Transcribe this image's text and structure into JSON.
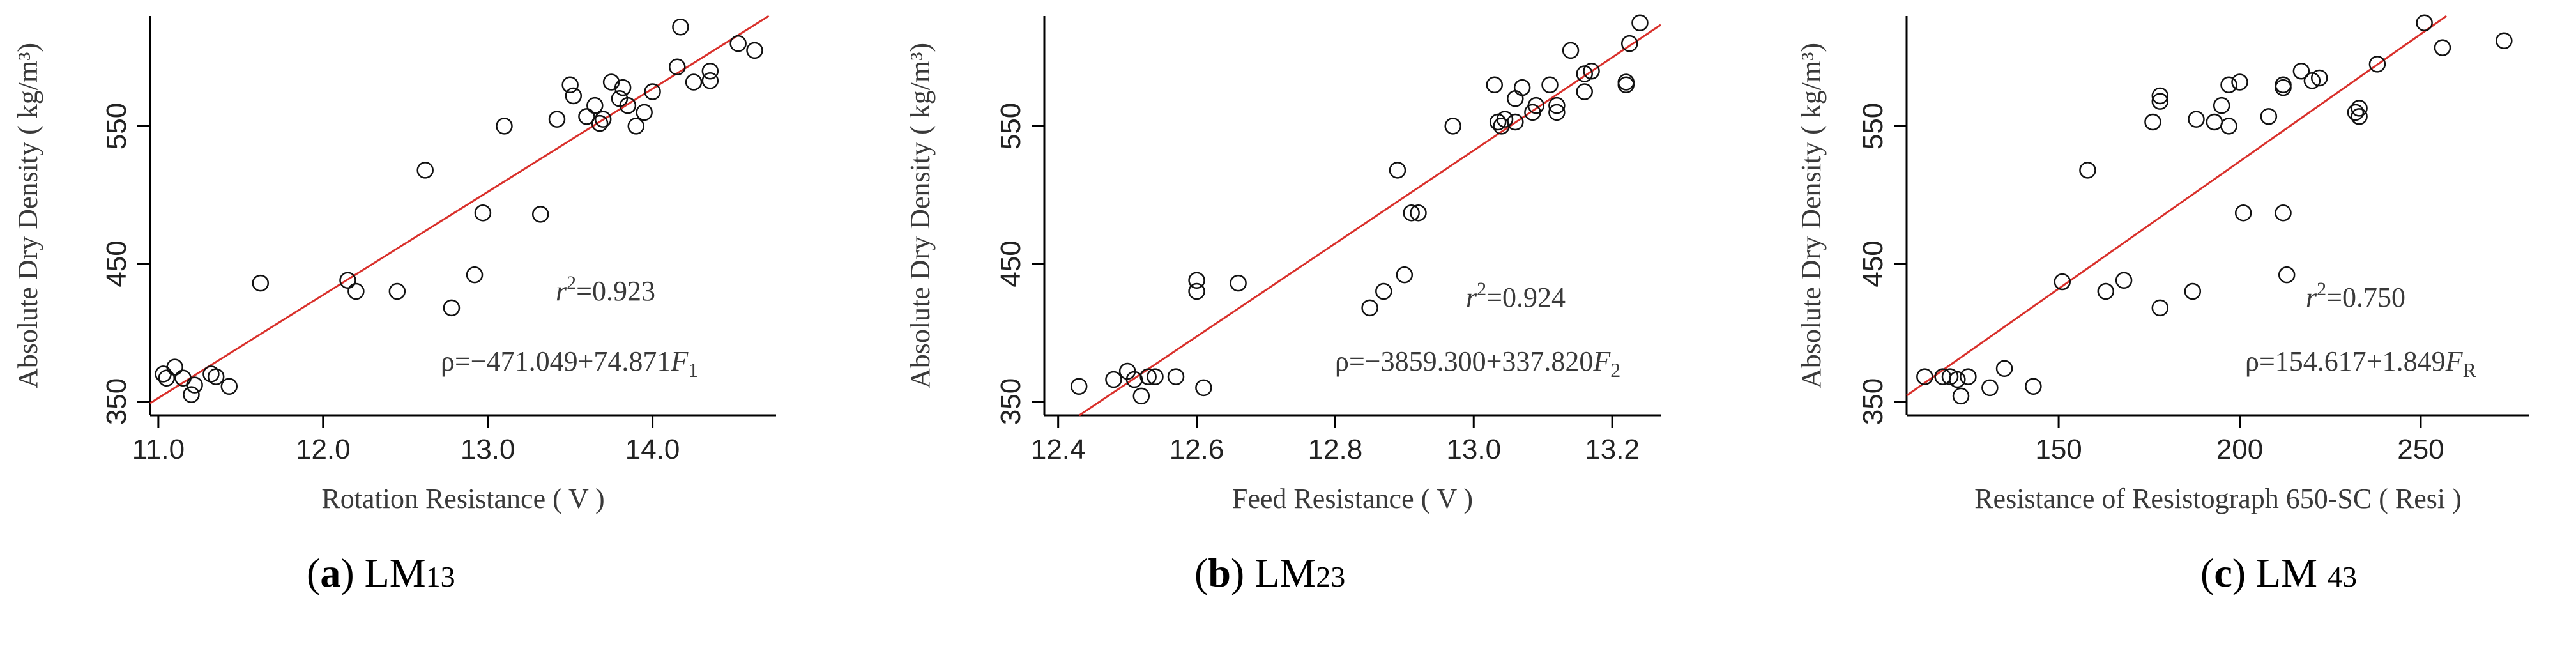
{
  "chart_data": [
    {
      "type": "scatter",
      "id": "a",
      "xlabel": "Rotation Resistance ( V )",
      "ylabel": "Absolute Dry Density ( kg/m³)",
      "xlim": [
        10.95,
        14.75
      ],
      "ylim": [
        340,
        630
      ],
      "xticks": [
        "11.0",
        "12.0",
        "13.0",
        "14.0"
      ],
      "xtick_values": [
        11,
        12,
        13,
        14
      ],
      "yticks": [
        "350",
        "450",
        "550"
      ],
      "ytick_values": [
        350,
        450,
        550
      ],
      "fit": {
        "intercept": -471.049,
        "slope": 74.871
      },
      "annotation_r2_pre": "r",
      "annotation_r2_sup": "2",
      "annotation_r2_post": "=0.923",
      "annotation_eq_pre": "ρ=−471.049+74.871",
      "annotation_eq_var": "F",
      "annotation_eq_sub": "1",
      "points": [
        [
          11.03,
          370
        ],
        [
          11.05,
          367
        ],
        [
          11.1,
          375
        ],
        [
          11.15,
          367
        ],
        [
          11.2,
          355
        ],
        [
          11.22,
          362
        ],
        [
          11.32,
          370
        ],
        [
          11.35,
          368
        ],
        [
          11.43,
          361
        ],
        [
          11.62,
          436
        ],
        [
          12.15,
          438
        ],
        [
          12.2,
          430
        ],
        [
          12.45,
          430
        ],
        [
          12.62,
          518
        ],
        [
          12.78,
          418
        ],
        [
          12.92,
          442
        ],
        [
          12.97,
          487
        ],
        [
          13.1,
          550
        ],
        [
          13.32,
          486
        ],
        [
          13.42,
          555
        ],
        [
          13.5,
          580
        ],
        [
          13.52,
          572
        ],
        [
          13.6,
          557
        ],
        [
          13.65,
          565
        ],
        [
          13.68,
          552
        ],
        [
          13.7,
          555
        ],
        [
          13.75,
          582
        ],
        [
          13.8,
          570
        ],
        [
          13.82,
          578
        ],
        [
          13.85,
          565
        ],
        [
          13.9,
          550
        ],
        [
          13.95,
          560
        ],
        [
          14.0,
          575
        ],
        [
          14.15,
          593
        ],
        [
          14.17,
          622
        ],
        [
          14.25,
          582
        ],
        [
          14.35,
          590
        ],
        [
          14.35,
          583
        ],
        [
          14.52,
          610
        ],
        [
          14.62,
          605
        ]
      ]
    },
    {
      "type": "scatter",
      "id": "b",
      "xlabel": "Feed Resistance ( V )",
      "ylabel": "Absolute Dry Density ( kg/m³)",
      "xlim": [
        12.38,
        13.27
      ],
      "ylim": [
        340,
        630
      ],
      "xticks": [
        "12.4",
        "12.6",
        "12.8",
        "13.0",
        "13.2"
      ],
      "xtick_values": [
        12.4,
        12.6,
        12.8,
        13.0,
        13.2
      ],
      "yticks": [
        "350",
        "450",
        "550"
      ],
      "ytick_values": [
        350,
        450,
        550
      ],
      "fit": {
        "intercept": -3859.3,
        "slope": 337.82
      },
      "annotation_r2_pre": "r",
      "annotation_r2_sup": "2",
      "annotation_r2_post": "=0.924",
      "annotation_eq_pre": "ρ=−3859.300+337.820",
      "annotation_eq_var": "F",
      "annotation_eq_sub": "2",
      "points": [
        [
          12.43,
          361
        ],
        [
          12.48,
          366
        ],
        [
          12.5,
          372
        ],
        [
          12.51,
          366
        ],
        [
          12.52,
          354
        ],
        [
          12.53,
          368
        ],
        [
          12.54,
          368
        ],
        [
          12.57,
          368
        ],
        [
          12.6,
          438
        ],
        [
          12.6,
          430
        ],
        [
          12.61,
          360
        ],
        [
          12.66,
          436
        ],
        [
          12.85,
          418
        ],
        [
          12.87,
          430
        ],
        [
          12.89,
          518
        ],
        [
          12.9,
          442
        ],
        [
          12.91,
          487
        ],
        [
          12.92,
          487
        ],
        [
          12.97,
          550
        ],
        [
          13.03,
          580
        ],
        [
          13.035,
          553
        ],
        [
          13.04,
          550
        ],
        [
          13.045,
          555
        ],
        [
          13.06,
          570
        ],
        [
          13.06,
          553
        ],
        [
          13.07,
          578
        ],
        [
          13.085,
          560
        ],
        [
          13.09,
          565
        ],
        [
          13.11,
          580
        ],
        [
          13.12,
          565
        ],
        [
          13.12,
          560
        ],
        [
          13.14,
          605
        ],
        [
          13.16,
          588
        ],
        [
          13.16,
          575
        ],
        [
          13.17,
          590
        ],
        [
          13.22,
          582
        ],
        [
          13.22,
          580
        ],
        [
          13.225,
          610
        ],
        [
          13.24,
          625
        ]
      ]
    },
    {
      "type": "scatter",
      "id": "c",
      "xlabel": "Resistance of Resistograph 650-SC ( Resi )",
      "ylabel": "Absolute Dry Density ( kg/m³)",
      "xlim": [
        108,
        280
      ],
      "ylim": [
        340,
        630
      ],
      "xticks": [
        "150",
        "200",
        "250"
      ],
      "xtick_values": [
        150,
        200,
        250
      ],
      "yticks": [
        "350",
        "450",
        "550"
      ],
      "ytick_values": [
        350,
        450,
        550
      ],
      "fit": {
        "intercept": 154.617,
        "slope": 1.849
      },
      "annotation_r2_pre": "r",
      "annotation_r2_sup": "2",
      "annotation_r2_post": "=0.750",
      "annotation_eq_pre": "ρ=154.617+1.849",
      "annotation_eq_var": "F",
      "annotation_eq_sub": "R",
      "points": [
        [
          113,
          368
        ],
        [
          118,
          368
        ],
        [
          120,
          368
        ],
        [
          122,
          366
        ],
        [
          123,
          354
        ],
        [
          125,
          368
        ],
        [
          131,
          360
        ],
        [
          135,
          374
        ],
        [
          143,
          361
        ],
        [
          151,
          437
        ],
        [
          158,
          518
        ],
        [
          163,
          430
        ],
        [
          168,
          438
        ],
        [
          176,
          553
        ],
        [
          178,
          418
        ],
        [
          178,
          568
        ],
        [
          178,
          572
        ],
        [
          187,
          430
        ],
        [
          188,
          555
        ],
        [
          193,
          553
        ],
        [
          195,
          565
        ],
        [
          197,
          550
        ],
        [
          197,
          580
        ],
        [
          200,
          582
        ],
        [
          201,
          487
        ],
        [
          208,
          557
        ],
        [
          212,
          578
        ],
        [
          212,
          580
        ],
        [
          212,
          487
        ],
        [
          213,
          442
        ],
        [
          217,
          590
        ],
        [
          220,
          583
        ],
        [
          222,
          585
        ],
        [
          232,
          560
        ],
        [
          233,
          563
        ],
        [
          233,
          557
        ],
        [
          238,
          595
        ],
        [
          251,
          625
        ],
        [
          256,
          607
        ],
        [
          273,
          612
        ]
      ]
    }
  ],
  "captions": [
    {
      "letter": "a",
      "name": "LM",
      "sub": "13"
    },
    {
      "letter": "b",
      "name": "LM",
      "sub": "23"
    },
    {
      "letter": "c",
      "name": "LM ",
      "sub": "43"
    }
  ]
}
